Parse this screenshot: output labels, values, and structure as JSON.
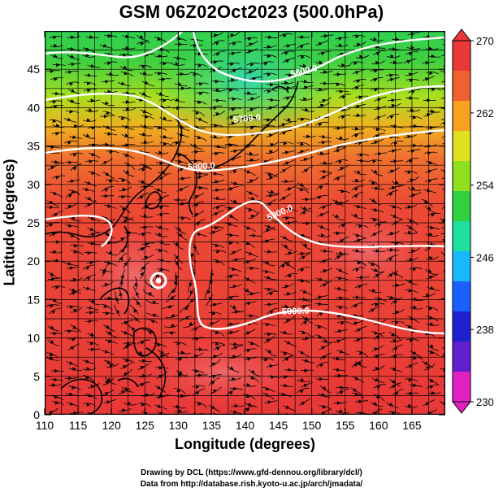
{
  "title": "GSM 06Z02Oct2023 (500.0hPa)",
  "x_axis": {
    "label": "Longitude (degrees)",
    "ticks": [
      "110",
      "115",
      "120",
      "125",
      "130",
      "135",
      "140",
      "145",
      "150",
      "155",
      "160",
      "165"
    ],
    "range": [
      110,
      170
    ]
  },
  "y_axis": {
    "label": "Latitude  (degrees)",
    "ticks": [
      "0",
      "5",
      "10",
      "15",
      "20",
      "25",
      "30",
      "35",
      "40",
      "45"
    ],
    "range": [
      0,
      50
    ]
  },
  "colorbar": {
    "ticks": [
      "230",
      "238",
      "246",
      "254",
      "262",
      "270"
    ],
    "range": [
      230,
      270
    ],
    "colors": [
      "#e020c0",
      "#6020d0",
      "#2020d0",
      "#1a60ff",
      "#18b8ff",
      "#20e0a0",
      "#30d040",
      "#90e020",
      "#e0e020",
      "#f8a020",
      "#f06030",
      "#e83838"
    ]
  },
  "contour_labels": [
    "5600.0",
    "5700.0",
    "5800.0",
    "5900.0",
    "5900.0"
  ],
  "typhoon_center": {
    "lon": 126.5,
    "lat": 19.5
  },
  "credits": {
    "line1": "Drawing by DCL (https://www.gfd-dennou.org/library/dcl/)",
    "line2": "Data from http://database.rish.kyoto-u.ac.jp/arch/jmadata/"
  }
}
